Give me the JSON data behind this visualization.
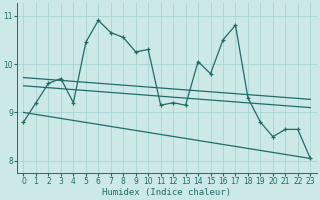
{
  "xlabel": "Humidex (Indice chaleur)",
  "x_values": [
    0,
    1,
    2,
    3,
    4,
    5,
    6,
    7,
    8,
    9,
    10,
    11,
    12,
    13,
    14,
    15,
    16,
    17,
    18,
    19,
    20,
    21,
    22,
    23
  ],
  "main_line": [
    8.8,
    9.2,
    9.6,
    9.7,
    9.2,
    10.45,
    10.9,
    10.65,
    10.55,
    10.25,
    10.3,
    9.15,
    9.2,
    9.15,
    10.05,
    9.8,
    10.5,
    10.8,
    9.3,
    8.8,
    8.5,
    8.65,
    8.65,
    8.05
  ],
  "trend1_y0": 9.72,
  "trend1_y1": 9.27,
  "trend2_y0": 9.55,
  "trend2_y1": 9.1,
  "trend3_y0": 9.0,
  "trend3_y1": 8.05,
  "bg_color": "#cce9e8",
  "grid_color": "#aad4d3",
  "line_color": "#1f6b68",
  "ylim": [
    7.75,
    11.25
  ],
  "xlim": [
    -0.5,
    23.5
  ],
  "yticks": [
    8,
    9,
    10,
    11
  ],
  "xticks": [
    0,
    1,
    2,
    3,
    4,
    5,
    6,
    7,
    8,
    9,
    10,
    11,
    12,
    13,
    14,
    15,
    16,
    17,
    18,
    19,
    20,
    21,
    22,
    23
  ],
  "tick_fontsize": 5.5,
  "xlabel_fontsize": 6.5
}
